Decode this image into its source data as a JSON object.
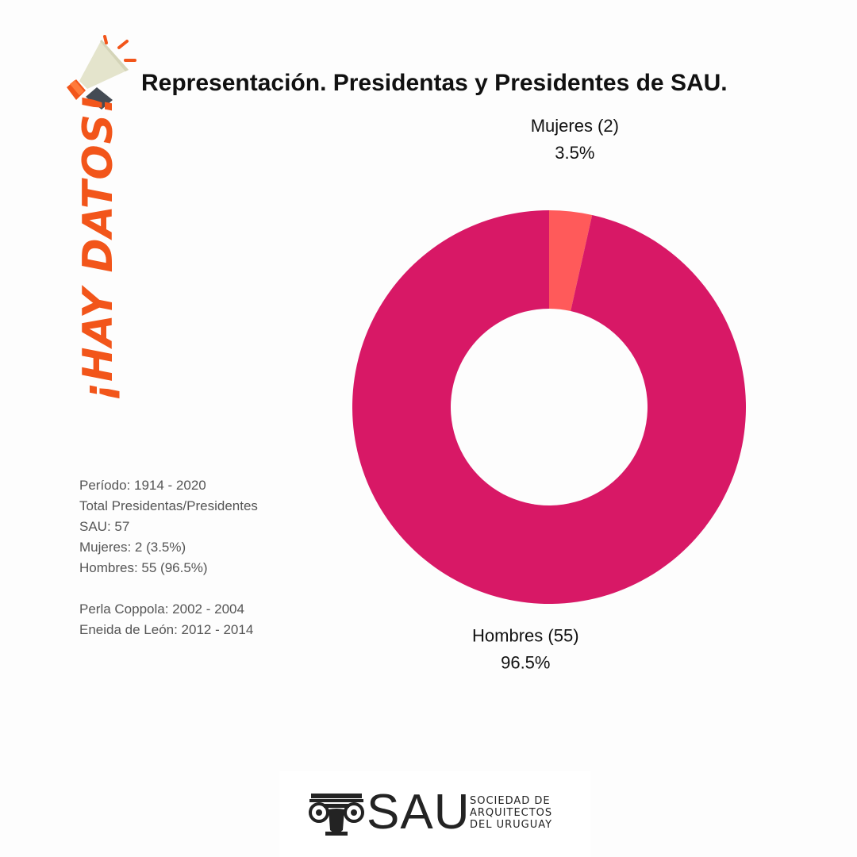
{
  "header": {
    "title": "Representación. Presidentas y Presidentes de SAU.",
    "icon": "megaphone-icon"
  },
  "side_badge": {
    "text": "¡HAY DATOS!",
    "color": "#f2551a"
  },
  "info": {
    "lines": [
      "Período: 1914 - 2020",
      "Total Presidentas/Presidentes",
      "SAU: 57",
      "Mujeres: 2 (3.5%)",
      "Hombres: 55 (96.5%)"
    ],
    "names": [
      "Perla Coppola: 2002 - 2004",
      "Eneida de León: 2012 - 2014"
    ]
  },
  "chart_data": {
    "type": "pie",
    "donut": true,
    "slices": [
      {
        "label": "Mujeres (2)",
        "value": 2,
        "percent_label": "3.5%",
        "color": "#ff5a5a"
      },
      {
        "label": "Hombres (55)",
        "value": 55,
        "percent_label": "96.5%",
        "color": "#d81866"
      }
    ],
    "legend": "none"
  },
  "footer": {
    "logo_abbr": "SAU",
    "logo_name": [
      "SOCIEDAD DE",
      "ARQUITECTOS",
      "DEL URUGUAY"
    ]
  }
}
